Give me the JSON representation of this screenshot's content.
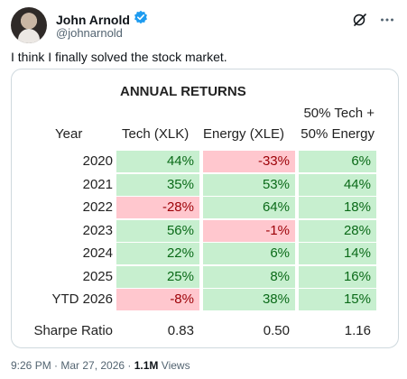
{
  "tweet": {
    "display_name": "John Arnold",
    "handle": "@johnarnold",
    "text": "I think I finally solved the stock market.",
    "timestamp": "9:26 PM · Mar 27, 2026 ·",
    "views_count": "1.1M",
    "views_label": "Views"
  },
  "icons": {
    "verified": "verified-badge-icon",
    "grok": "grok-icon",
    "more": "more-options-icon"
  },
  "colors": {
    "accent": "#1d9bf0",
    "positive_fill": "#c7efcf",
    "positive_text": "#0a6a18",
    "negative_fill": "#ffc7ce",
    "negative_text": "#9c0006"
  },
  "table": {
    "title": "ANNUAL RETURNS",
    "headers": {
      "year": "Year",
      "tech": "Tech (XLK)",
      "energy": "Energy (XLE)",
      "mix_line1": "50% Tech +",
      "mix_line2": "50% Energy"
    },
    "rows": [
      {
        "year": "2020",
        "tech": "44%",
        "energy": "-33%",
        "mix": "6%"
      },
      {
        "year": "2021",
        "tech": "35%",
        "energy": "53%",
        "mix": "44%"
      },
      {
        "year": "2022",
        "tech": "-28%",
        "energy": "64%",
        "mix": "18%"
      },
      {
        "year": "2023",
        "tech": "56%",
        "energy": "-1%",
        "mix": "28%"
      },
      {
        "year": "2024",
        "tech": "22%",
        "energy": "6%",
        "mix": "14%"
      },
      {
        "year": "2025",
        "tech": "25%",
        "energy": "8%",
        "mix": "16%"
      },
      {
        "year": "YTD 2026",
        "tech": "-8%",
        "energy": "38%",
        "mix": "15%"
      }
    ],
    "sharpe": {
      "label": "Sharpe Ratio",
      "tech": "0.83",
      "energy": "0.50",
      "mix": "1.16"
    }
  }
}
